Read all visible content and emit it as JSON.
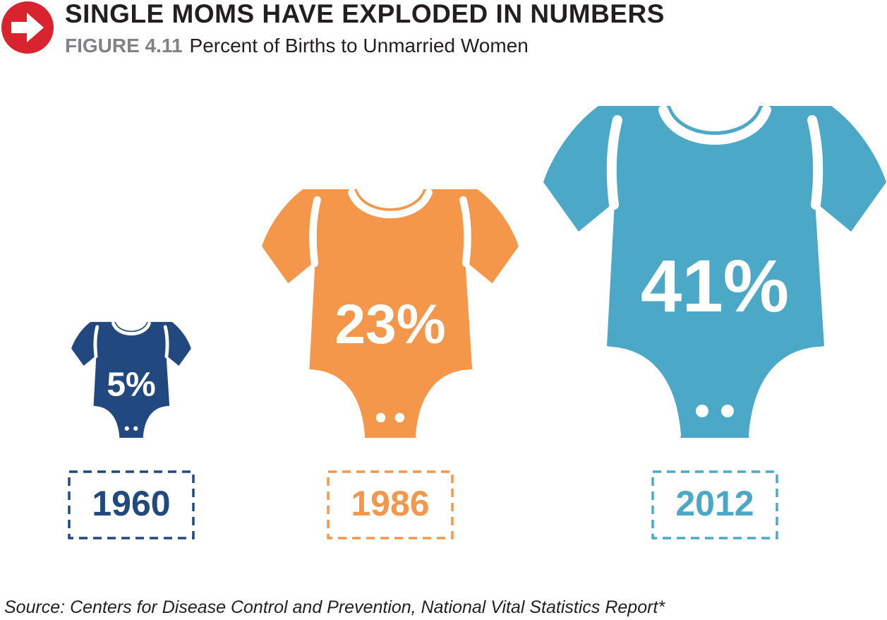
{
  "header": {
    "title": "SINGLE MOMS HAVE EXPLODED IN NUMBERS",
    "figure_label": "FIGURE 4.11",
    "subtitle": "Percent of Births to Unmarried Women",
    "icon": "right-arrow-icon",
    "icon_color": "#d9232e"
  },
  "chart_data": {
    "type": "bar",
    "title": "SINGLE MOMS HAVE EXPLODED IN NUMBERS",
    "subtitle": "Percent of Births to Unmarried Women",
    "categories": [
      "1960",
      "1986",
      "2012"
    ],
    "values": [
      5,
      23,
      41
    ],
    "labels": [
      "5%",
      "23%",
      "41%"
    ],
    "colors": [
      "#22497f",
      "#f5974a",
      "#4ba8c6"
    ],
    "mark": "baby-onesie-icon",
    "legend": "none",
    "grid": false
  },
  "footer": {
    "source": "Source: Centers for Disease Control and Prevention, National Vital Statistics Report*"
  }
}
